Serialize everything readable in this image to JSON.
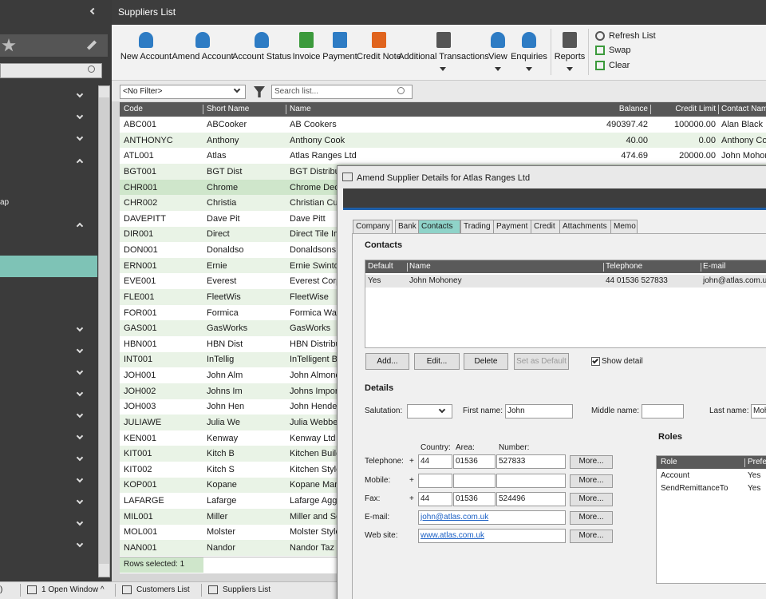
{
  "sidebar": {
    "partial_item": "ap"
  },
  "header": {
    "title": "Suppliers List"
  },
  "toolbar": {
    "buttons": [
      "New Account",
      "Amend Account",
      "Account Status",
      "Invoice",
      "Payment",
      "Credit Note",
      "Additional Transactions",
      "View",
      "Enquiries",
      "Reports"
    ],
    "side_buttons": [
      "Refresh List",
      "Swap",
      "Clear"
    ]
  },
  "filter": {
    "selected": "<No Filter>",
    "search_placeholder": "Search list..."
  },
  "table": {
    "columns": [
      "Code",
      "Short Name",
      "Name",
      "Balance",
      "Credit Limit",
      "Contact Name"
    ],
    "rows": [
      [
        "ABC001",
        "ABCooker",
        "AB Cookers",
        "490397.42",
        "100000.00",
        "Alan Black"
      ],
      [
        "ANTHONYC",
        "Anthony",
        "Anthony Cook",
        "40.00",
        "0.00",
        "Anthony Coo"
      ],
      [
        "ATL001",
        "Atlas",
        "Atlas Ranges Ltd",
        "474.69",
        "20000.00",
        "John Mohon"
      ],
      [
        "BGT001",
        "BGT Dist",
        "BGT Distribut"
      ],
      [
        "CHR001",
        "Chrome",
        "Chrome Deco"
      ],
      [
        "CHR002",
        "Christia",
        "Christian Cul"
      ],
      [
        "DAVEPITT",
        "Dave Pit",
        "Dave Pitt"
      ],
      [
        "DIR001",
        "Direct",
        "Direct Tile Im"
      ],
      [
        "DON001",
        "Donaldso",
        "Donaldsons"
      ],
      [
        "ERN001",
        "Ernie",
        "Ernie Swinto"
      ],
      [
        "EVE001",
        "Everest",
        "Everest Corp"
      ],
      [
        "FLE001",
        "FleetWis",
        "FleetWise"
      ],
      [
        "FOR001",
        "Formica",
        "Formica War"
      ],
      [
        "GAS001",
        "GasWorks",
        "GasWorks"
      ],
      [
        "HBN001",
        "HBN Dist",
        "HBN Distribut"
      ],
      [
        "INT001",
        "InTellig",
        "InTelligent B"
      ],
      [
        "JOH001",
        "John Alm",
        "John Almond"
      ],
      [
        "JOH002",
        "Johns Im",
        "Johns Import"
      ],
      [
        "JOH003",
        "John Hen",
        "John Hender"
      ],
      [
        "JULIAWE",
        "Julia We",
        "Julia Webber"
      ],
      [
        "KEN001",
        "Kenway",
        "Kenway Ltd"
      ],
      [
        "KIT001",
        "Kitch B",
        "Kitchen Build"
      ],
      [
        "KIT002",
        "Kitch S",
        "Kitchen Style"
      ],
      [
        "KOP001",
        "Kopane",
        "Kopane Mana"
      ],
      [
        "LAFARGE",
        "Lafarge",
        "Lafarge Aggr"
      ],
      [
        "MIL001",
        "Miller",
        "Miller and So"
      ],
      [
        "MOL001",
        "Molster",
        "Molster Style"
      ],
      [
        "NAN001",
        "Nandor",
        "Nandor Taz D"
      ]
    ],
    "footer": "Rows selected: 1"
  },
  "taskbar": {
    "items": [
      ")",
      "1 Open Window ^",
      "Customers List",
      "Suppliers List"
    ]
  },
  "dialog": {
    "title": "Amend Supplier Details for Atlas Ranges Ltd",
    "tabs": [
      "Company",
      "Bank",
      "Contacts",
      "Trading",
      "Payment",
      "Credit",
      "Attachments",
      "Memo"
    ],
    "contacts": {
      "heading": "Contacts",
      "columns": [
        "Default",
        "Name",
        "Telephone",
        "E-mail"
      ],
      "rows": [
        [
          "Yes",
          "John Mohoney",
          "44 01536 527833",
          "john@atlas.com.u"
        ]
      ],
      "buttons": [
        "Add...",
        "Edit...",
        "Delete",
        "Set as Default"
      ],
      "show_detail": "Show detail"
    },
    "details": {
      "heading": "Details",
      "salutation_label": "Salutation:",
      "first_name_label": "First name:",
      "first_name": "John",
      "middle_name_label": "Middle name:",
      "last_name_label": "Last name:",
      "last_name": "Moh",
      "number_headers": [
        "Country:",
        "Area:",
        "Number:"
      ],
      "phone_rows": [
        {
          "label": "Telephone:",
          "plus": "+",
          "country": "44",
          "area": "01536",
          "number": "527833",
          "more": "More..."
        },
        {
          "label": "Mobile:",
          "plus": "+",
          "more": "More..."
        },
        {
          "label": "Fax:",
          "plus": "+",
          "country": "44",
          "area": "01536",
          "number": "524496",
          "more": "More..."
        }
      ],
      "email_label": "E-mail:",
      "email": "john@atlas.com.uk",
      "email_more": "More...",
      "web_label": "Web site:",
      "web": "www.atlas.com.uk",
      "web_more": "More..."
    },
    "roles": {
      "heading": "Roles",
      "columns": [
        "Role",
        "Prefe"
      ],
      "rows": [
        [
          "Account",
          "Yes"
        ],
        [
          "SendRemittanceTo",
          "Yes"
        ]
      ]
    }
  }
}
